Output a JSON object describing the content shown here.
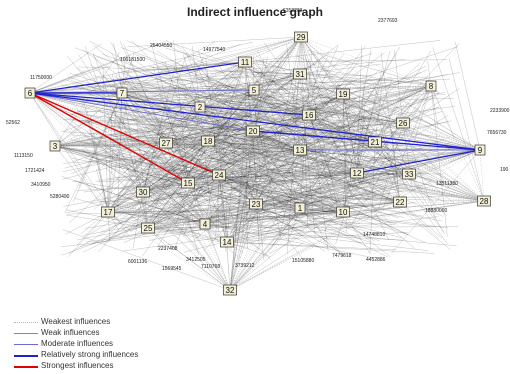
{
  "title": "Indirect influence graph",
  "nodes": [
    {
      "id": "1"
    },
    {
      "id": "2"
    },
    {
      "id": "3"
    },
    {
      "id": "4"
    },
    {
      "id": "5"
    },
    {
      "id": "6"
    },
    {
      "id": "7"
    },
    {
      "id": "8"
    },
    {
      "id": "9"
    },
    {
      "id": "10"
    },
    {
      "id": "11"
    },
    {
      "id": "12"
    },
    {
      "id": "13"
    },
    {
      "id": "14"
    },
    {
      "id": "15"
    },
    {
      "id": "16"
    },
    {
      "id": "17"
    },
    {
      "id": "18"
    },
    {
      "id": "19"
    },
    {
      "id": "20"
    },
    {
      "id": "21"
    },
    {
      "id": "22"
    },
    {
      "id": "23"
    },
    {
      "id": "24"
    },
    {
      "id": "25"
    },
    {
      "id": "26"
    },
    {
      "id": "27"
    },
    {
      "id": "28"
    },
    {
      "id": "29"
    },
    {
      "id": "30"
    },
    {
      "id": "31"
    },
    {
      "id": "32"
    },
    {
      "id": "33"
    }
  ],
  "edge_labels": [
    "6353203",
    "2377693",
    "25404550",
    "14977540",
    "106181500",
    "11750000",
    "52562",
    "1113150",
    "1721424",
    "3410950",
    "5280490",
    "7656730",
    "2233900",
    "4452886",
    "2237408",
    "6001136",
    "3412505",
    "1569545",
    "7110768",
    "190",
    "18880060",
    "13511380",
    "14748810",
    "3739212",
    "15105880",
    "7479618"
  ],
  "legend": [
    {
      "label": "Weakest influences",
      "color": "#b8b8b8",
      "style": "dotted"
    },
    {
      "label": "Weak influences",
      "color": "#8a8a8a",
      "style": "solid"
    },
    {
      "label": "Moderate influences",
      "color": "#6b6bd0",
      "style": "solid"
    },
    {
      "label": "Relatively strong influences",
      "color": "#2020d0",
      "style": "solid"
    },
    {
      "label": "Strongest influences",
      "color": "#e00000",
      "style": "solid"
    }
  ],
  "edges": {
    "strongest": [
      [
        "6",
        "15"
      ],
      [
        "6",
        "24"
      ]
    ],
    "relatively_strong": [
      [
        "6",
        "11"
      ],
      [
        "6",
        "16"
      ],
      [
        "6",
        "9"
      ],
      [
        "6",
        "7"
      ],
      [
        "9",
        "12"
      ],
      [
        "9",
        "20"
      ]
    ],
    "moderate": [
      [
        "6",
        "20"
      ],
      [
        "9",
        "13"
      ],
      [
        "6",
        "5"
      ]
    ]
  },
  "colors": {
    "node_fill": "#f4f0d8",
    "node_stroke": "#333333",
    "dense_edge": "#1a1a1a",
    "weakest_edge": "#b8b8b8"
  }
}
